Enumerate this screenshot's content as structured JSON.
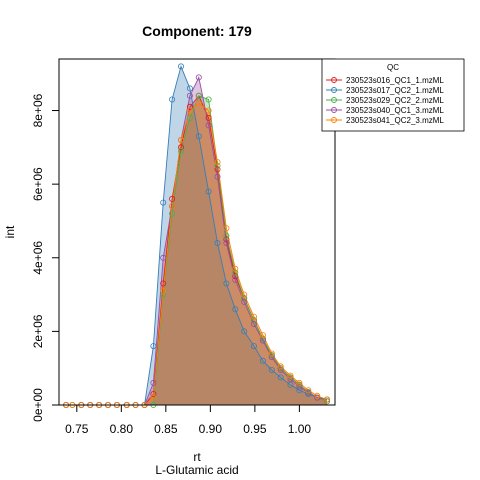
{
  "chart_data": {
    "type": "area",
    "title": "Component: 179",
    "xlabel": "rt",
    "subtitle": "L-Glutamic acid",
    "ylabel": "int",
    "xlim": [
      0.73,
      1.04
    ],
    "ylim": [
      0,
      9400000
    ],
    "x_ticks": [
      0.75,
      0.8,
      0.85,
      0.9,
      0.95,
      1.0
    ],
    "x_tick_labels": [
      "0.75",
      "0.80",
      "0.85",
      "0.90",
      "0.95",
      "1.00"
    ],
    "y_ticks": [
      0,
      2000000,
      4000000,
      6000000,
      8000000
    ],
    "y_tick_labels": [
      "0e+00",
      "2e+06",
      "4e+06",
      "6e+06",
      "8e+06"
    ],
    "legend": {
      "title": "QC",
      "position": "top-right"
    },
    "series": [
      {
        "name": "230523s016_QC1_1.mzML",
        "color": "#E41A1C",
        "marker": "circle",
        "x": [
          0.738,
          0.755,
          0.765,
          0.775,
          0.785,
          0.795,
          0.806,
          0.816,
          0.826,
          0.836,
          0.847,
          0.857,
          0.867,
          0.877,
          0.887,
          0.898,
          0.908,
          0.918,
          0.928,
          0.938,
          0.949,
          0.959,
          0.969,
          0.979,
          0.99,
          1.0,
          1.01,
          1.02,
          1.031
        ],
        "y": [
          0,
          0,
          0,
          0,
          0,
          0,
          0,
          0,
          0,
          300000,
          3300000,
          5600000,
          7000000,
          8100000,
          8400000,
          7800000,
          6400000,
          4500000,
          3500000,
          2900000,
          2300000,
          1800000,
          1350000,
          1000000,
          750000,
          550000,
          350000,
          200000,
          100000
        ]
      },
      {
        "name": "230523s017_QC2_1.mzML",
        "color": "#377EB8",
        "marker": "triangle",
        "x": [
          0.738,
          0.755,
          0.765,
          0.775,
          0.785,
          0.795,
          0.806,
          0.816,
          0.826,
          0.836,
          0.847,
          0.857,
          0.867,
          0.877,
          0.887,
          0.898,
          0.908,
          0.918,
          0.928,
          0.938,
          0.949,
          0.959,
          0.969,
          0.979,
          0.99,
          1.0,
          1.01,
          1.02,
          1.031
        ],
        "y": [
          0,
          0,
          0,
          0,
          0,
          0,
          0,
          0,
          0,
          1600000,
          5500000,
          8300000,
          9200000,
          8600000,
          7300000,
          5800000,
          4400000,
          3300000,
          2600000,
          2000000,
          1600000,
          1200000,
          950000,
          750000,
          550000,
          400000,
          300000,
          200000,
          150000
        ]
      },
      {
        "name": "230523s029_QC2_2.mzML",
        "color": "#4DAF4A",
        "marker": "circle",
        "x": [
          0.745,
          0.755,
          0.765,
          0.775,
          0.785,
          0.795,
          0.806,
          0.816,
          0.826,
          0.836,
          0.847,
          0.857,
          0.867,
          0.877,
          0.887,
          0.898,
          0.908,
          0.918,
          0.928,
          0.938,
          0.949,
          0.959,
          0.969,
          0.979,
          0.99,
          1.0,
          1.01,
          1.02,
          1.031
        ],
        "y": [
          0,
          0,
          0,
          0,
          0,
          0,
          0,
          0,
          0,
          0,
          3000000,
          5200000,
          6900000,
          7800000,
          8400000,
          8300000,
          6500000,
          4600000,
          3600000,
          2900000,
          2300000,
          1800000,
          1350000,
          1000000,
          750000,
          550000,
          350000,
          200000,
          100000
        ]
      },
      {
        "name": "230523s040_QC1_3.mzML",
        "color": "#984EA3",
        "marker": "square",
        "x": [
          0.738,
          0.755,
          0.765,
          0.775,
          0.785,
          0.795,
          0.806,
          0.816,
          0.826,
          0.836,
          0.847,
          0.857,
          0.867,
          0.877,
          0.887,
          0.898,
          0.908,
          0.918,
          0.928,
          0.938,
          0.949,
          0.959,
          0.969,
          0.979,
          0.99,
          1.0,
          1.01,
          1.02,
          1.031
        ],
        "y": [
          0,
          0,
          0,
          0,
          0,
          0,
          0,
          0,
          0,
          600000,
          4000000,
          5400000,
          7200000,
          8400000,
          8900000,
          7600000,
          6200000,
          4400000,
          3400000,
          2800000,
          2200000,
          1750000,
          1300000,
          950000,
          700000,
          500000,
          330000,
          200000,
          150000
        ]
      },
      {
        "name": "230523s041_QC2_3.mzML",
        "color": "#FF7F00",
        "marker": "circle",
        "x": [
          0.738,
          0.745,
          0.755,
          0.765,
          0.775,
          0.785,
          0.795,
          0.806,
          0.816,
          0.826,
          0.836,
          0.847,
          0.857,
          0.867,
          0.877,
          0.887,
          0.898,
          0.908,
          0.918,
          0.928,
          0.938,
          0.949,
          0.959,
          0.969,
          0.979,
          0.99,
          1.0,
          1.01,
          1.02,
          1.031
        ],
        "y": [
          0,
          0,
          0,
          0,
          0,
          0,
          0,
          0,
          0,
          0,
          200000,
          3100000,
          5400000,
          7200000,
          8000000,
          8200000,
          8000000,
          6600000,
          4800000,
          3700000,
          3000000,
          2400000,
          1900000,
          1400000,
          1050000,
          800000,
          600000,
          400000,
          250000,
          150000
        ]
      }
    ]
  }
}
